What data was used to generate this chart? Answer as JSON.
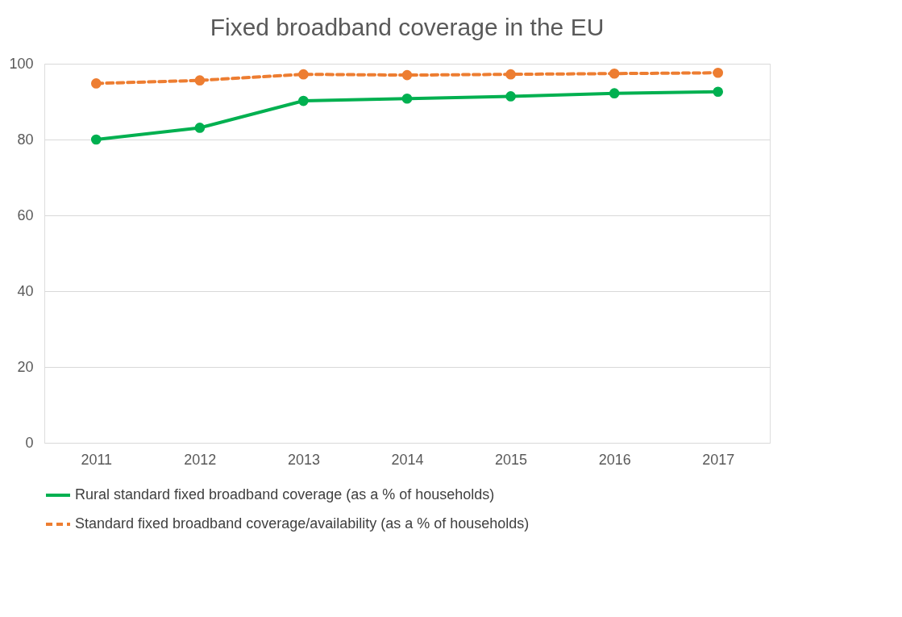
{
  "chart_data": {
    "type": "line",
    "title": "Fixed broadband coverage in the EU",
    "categories": [
      "2011",
      "2012",
      "2013",
      "2014",
      "2015",
      "2016",
      "2017"
    ],
    "series": [
      {
        "name": "Rural standard fixed broadband coverage (as a % of households)",
        "color": "#00b050",
        "line_style": "solid",
        "values": [
          80.0,
          83.1,
          90.2,
          90.8,
          91.4,
          92.2,
          92.6
        ]
      },
      {
        "name": "Standard fixed broadband coverage/availability (as a % of households)",
        "color": "#ed7d31",
        "line_style": "dashed",
        "values": [
          94.8,
          95.6,
          97.2,
          97.0,
          97.2,
          97.4,
          97.6
        ]
      }
    ],
    "ylim": [
      0,
      100
    ],
    "yticks": [
      0,
      20,
      40,
      60,
      80,
      100
    ],
    "grid": "y",
    "legend": "bottom",
    "marker": "circle"
  }
}
